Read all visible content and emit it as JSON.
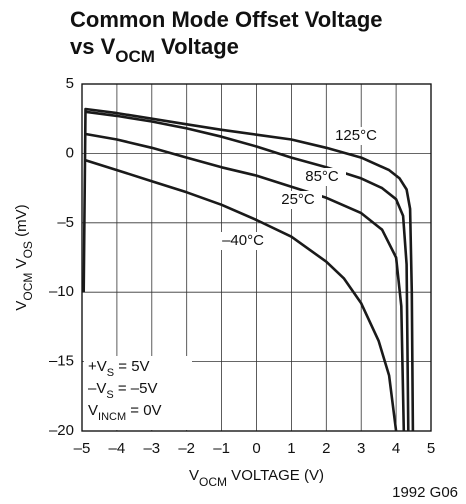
{
  "chart_data": {
    "type": "line",
    "title": [
      [
        {
          "text": "Common Mode Offset Voltage"
        }
      ],
      [
        {
          "text": "vs V"
        },
        {
          "text": "OCM",
          "sub": true
        },
        {
          "text": " Voltage"
        }
      ]
    ],
    "x_label": [
      {
        "text": "V"
      },
      {
        "text": "OCM",
        "sub": true
      },
      {
        "text": " VOLTAGE (V)"
      }
    ],
    "y_label": [
      {
        "text": "V"
      },
      {
        "text": "OCM",
        "sub": true
      },
      {
        "text": " V"
      },
      {
        "text": "OS",
        "sub": true
      },
      {
        "text": " (mV)"
      }
    ],
    "conditions": [
      [
        {
          "text": "+V"
        },
        {
          "text": "S",
          "sub": true
        },
        {
          "text": " = 5V"
        }
      ],
      [
        {
          "text": "–V"
        },
        {
          "text": "S",
          "sub": true
        },
        {
          "text": " = –5V"
        }
      ],
      [
        {
          "text": "V"
        },
        {
          "text": "INCM",
          "sub": true
        },
        {
          "text": " = 0V"
        }
      ]
    ],
    "figure_id": "1992 G06",
    "xlim": [
      -5,
      5
    ],
    "ylim": [
      -20,
      5
    ],
    "xticks": [
      {
        "value": -5,
        "label": "–5"
      },
      {
        "value": -4,
        "label": "–4"
      },
      {
        "value": -3,
        "label": "–3"
      },
      {
        "value": -2,
        "label": "–2"
      },
      {
        "value": -1,
        "label": "–1"
      },
      0,
      1,
      2,
      3,
      4,
      5
    ],
    "yticks": [
      {
        "value": -20,
        "label": "–20"
      },
      {
        "value": -15,
        "label": "–15"
      },
      {
        "value": -10,
        "label": "–10"
      },
      {
        "value": -5,
        "label": "–5"
      },
      0,
      5
    ],
    "grid": true,
    "series": [
      {
        "name": "125°C",
        "color": "#1a1a1a",
        "x": [
          -4.95,
          -4.9,
          -4,
          -3,
          -2,
          -1,
          0,
          1,
          2,
          3,
          3.8,
          4.1,
          4.3,
          4.4,
          4.45,
          4.48
        ],
        "values": [
          -10,
          3.2,
          2.9,
          2.5,
          2.1,
          1.7,
          1.35,
          1.0,
          0.4,
          -0.3,
          -1.2,
          -1.8,
          -2.6,
          -4,
          -10,
          -20
        ]
      },
      {
        "name": "85°C",
        "color": "#1a1a1a",
        "x": [
          -4.9,
          -4,
          -3,
          -2,
          -1,
          0,
          1,
          2,
          3,
          3.6,
          4,
          4.2,
          4.3,
          4.35
        ],
        "values": [
          3.0,
          2.7,
          2.3,
          1.8,
          1.2,
          0.5,
          -0.3,
          -1.0,
          -1.8,
          -2.5,
          -3.3,
          -4.5,
          -8,
          -20
        ]
      },
      {
        "name": "25°C",
        "color": "#1a1a1a",
        "x": [
          -4.9,
          -4,
          -3,
          -2,
          -1,
          0,
          1,
          2,
          3,
          3.6,
          4,
          4.15,
          4.22
        ],
        "values": [
          1.4,
          1.0,
          0.4,
          -0.3,
          -1.0,
          -1.6,
          -2.4,
          -3.2,
          -4.3,
          -5.5,
          -7.5,
          -11,
          -20
        ]
      },
      {
        "name": "–40°C",
        "color": "#1a1a1a",
        "x": [
          -4.9,
          -4,
          -3,
          -2,
          -1,
          0,
          1,
          2,
          2.5,
          3,
          3.5,
          3.8,
          4
        ],
        "values": [
          -0.5,
          -1.2,
          -2.0,
          -2.8,
          -3.7,
          -4.8,
          -6.0,
          -7.8,
          -9.0,
          -10.8,
          -13.5,
          -16,
          -20
        ]
      }
    ]
  }
}
